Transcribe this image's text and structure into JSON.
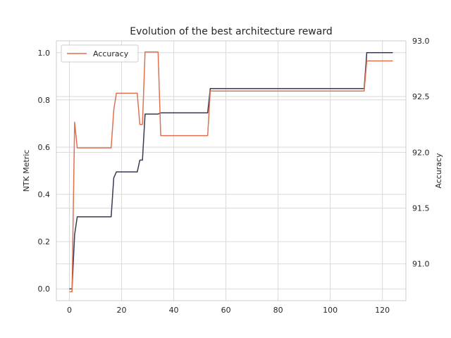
{
  "chart_data": {
    "type": "line",
    "title": "Evolution of the best architecture reward",
    "xlabel": "",
    "ylabel": "NTK Metric",
    "y2label": "Accuracy",
    "xlim": [
      -5,
      129
    ],
    "ylim": [
      -0.05,
      1.05
    ],
    "y2lim": [
      90.67,
      93.0
    ],
    "xticks": [
      0,
      20,
      40,
      60,
      80,
      100,
      120
    ],
    "yticks": [
      0.0,
      0.2,
      0.4,
      0.6,
      0.8,
      1.0
    ],
    "y2ticks": [
      91.0,
      91.5,
      92.0,
      92.5,
      93.0
    ],
    "grid": true,
    "legend": {
      "position": "top-left",
      "entries": [
        "Accuracy"
      ]
    },
    "series": [
      {
        "axis": "left",
        "color": "#383a52",
        "points": [
          [
            0,
            0.0
          ],
          [
            1,
            0.0
          ],
          [
            2,
            0.23
          ],
          [
            3,
            0.305
          ],
          [
            16,
            0.305
          ],
          [
            17,
            0.47
          ],
          [
            18,
            0.495
          ],
          [
            26,
            0.495
          ],
          [
            27,
            0.545
          ],
          [
            28,
            0.545
          ],
          [
            29,
            0.74
          ],
          [
            34,
            0.74
          ],
          [
            35,
            0.745
          ],
          [
            53,
            0.745
          ],
          [
            54,
            0.848
          ],
          [
            113,
            0.848
          ],
          [
            114,
            1.0
          ],
          [
            124,
            1.0
          ]
        ]
      },
      {
        "name": "Accuracy",
        "axis": "right",
        "color": "#e07050",
        "points": [
          [
            0,
            90.75
          ],
          [
            1,
            90.75
          ],
          [
            2,
            92.27
          ],
          [
            3,
            92.04
          ],
          [
            16,
            92.04
          ],
          [
            17,
            92.38
          ],
          [
            18,
            92.53
          ],
          [
            26,
            92.53
          ],
          [
            27,
            92.25
          ],
          [
            28,
            92.25
          ],
          [
            29,
            92.9
          ],
          [
            34,
            92.9
          ],
          [
            35,
            92.15
          ],
          [
            53,
            92.15
          ],
          [
            54,
            92.55
          ],
          [
            113,
            92.55
          ],
          [
            114,
            92.82
          ],
          [
            124,
            92.82
          ]
        ]
      }
    ]
  }
}
